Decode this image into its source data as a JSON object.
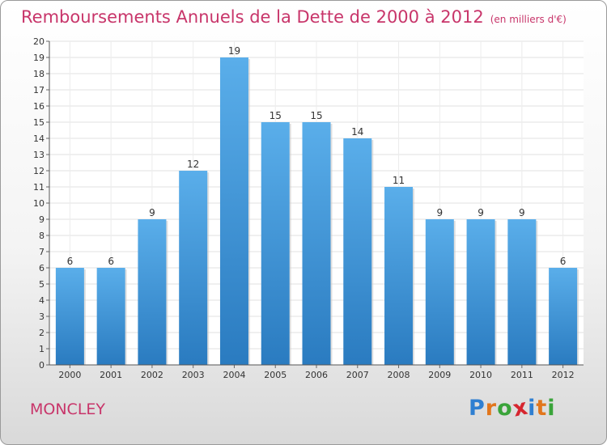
{
  "header": {
    "title": "Remboursements Annuels de la Dette de 2000 à 2012",
    "unit": "(en milliers d'€)"
  },
  "footer": {
    "commune": "MONCLEY",
    "logo": [
      "P",
      "r",
      "o",
      "x",
      "i",
      "t",
      "i"
    ]
  },
  "colors": {
    "title": "#c8356a",
    "bar_top": "#5aaeea",
    "bar_bottom": "#2a7bc0",
    "logo": [
      "#2f7fd1",
      "#e2761c",
      "#3aa43a",
      "#d6262f",
      "#2f7fd1",
      "#e2761c",
      "#3aa43a"
    ]
  },
  "chart_data": {
    "type": "bar",
    "categories": [
      "2000",
      "2001",
      "2002",
      "2003",
      "2004",
      "2005",
      "2006",
      "2007",
      "2008",
      "2009",
      "2010",
      "2011",
      "2012"
    ],
    "values": [
      6,
      6,
      9,
      12,
      19,
      15,
      15,
      14,
      11,
      9,
      9,
      9,
      6
    ],
    "title": "Remboursements Annuels de la Dette de 2000 à 2012",
    "ylim": [
      0,
      20
    ],
    "yticks": [
      0,
      1,
      2,
      3,
      4,
      5,
      6,
      7,
      8,
      9,
      10,
      11,
      12,
      13,
      14,
      15,
      16,
      17,
      18,
      19,
      20
    ],
    "grid": true,
    "data_labels": true
  }
}
